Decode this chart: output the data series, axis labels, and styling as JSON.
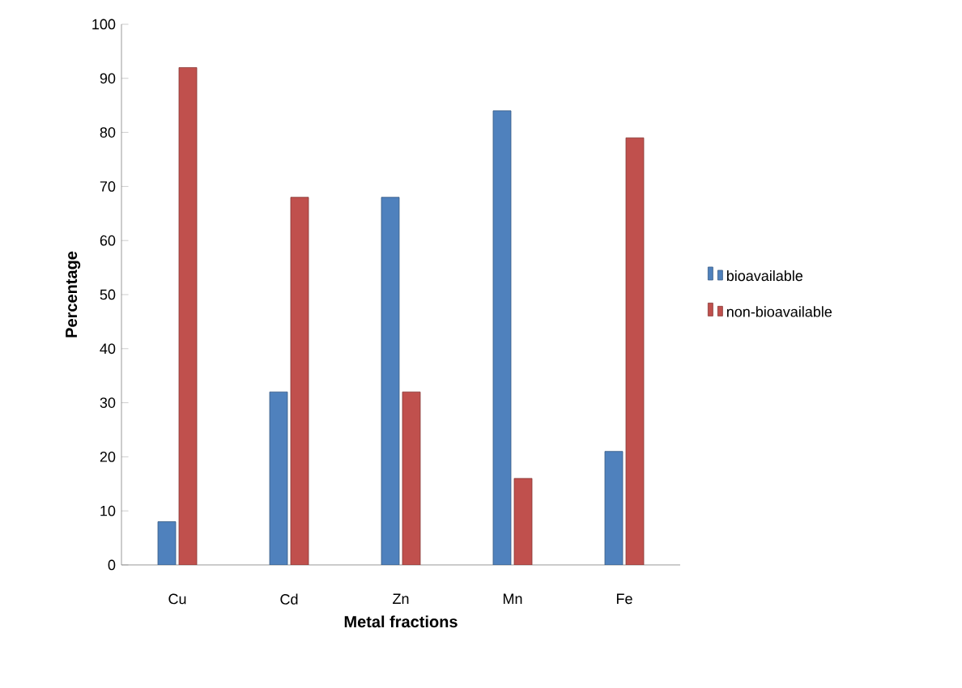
{
  "chart_data": {
    "type": "bar",
    "xlabel": "Metal fractions",
    "ylabel": "Percentage",
    "categories": [
      "Cu",
      "Cd",
      "Zn",
      "Mn",
      "Fe"
    ],
    "series": [
      {
        "name": "bioavailable",
        "color": "#4f81bd",
        "values": [
          8,
          32,
          68,
          84,
          21
        ]
      },
      {
        "name": "non-bioavailable",
        "color": "#c0504d",
        "values": [
          92,
          68,
          32,
          16,
          79
        ]
      }
    ],
    "ylim": [
      0,
      100
    ],
    "yticks": [
      0,
      10,
      20,
      30,
      40,
      50,
      60,
      70,
      80,
      90,
      100
    ],
    "grid": false,
    "legend": "right"
  }
}
